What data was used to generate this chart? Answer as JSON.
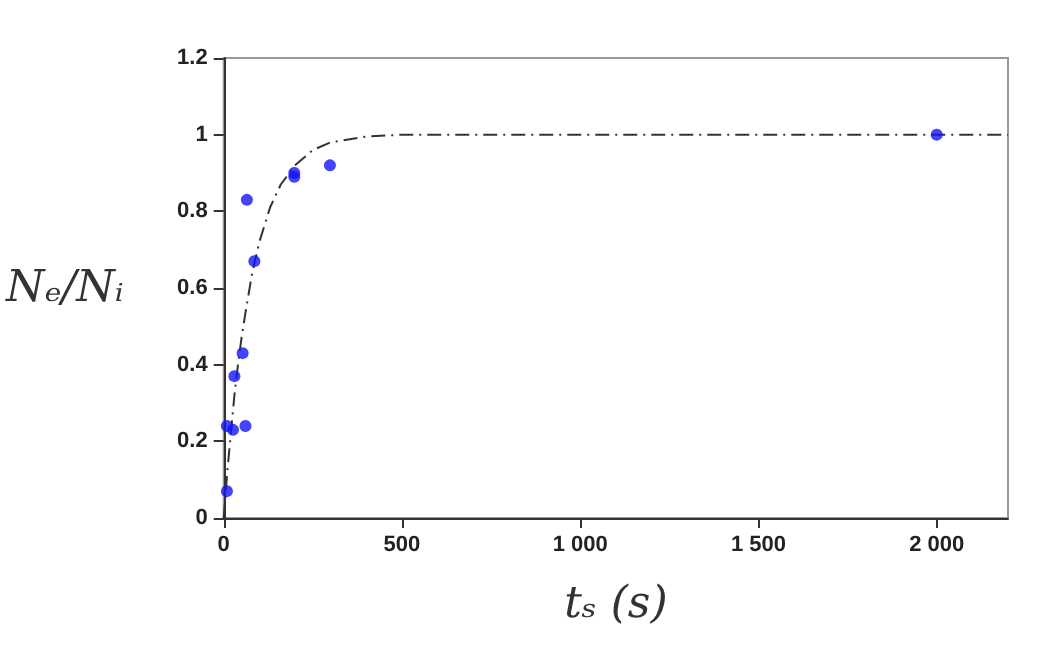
{
  "chart_data": {
    "type": "scatter",
    "xlabel": "tₛ (s)",
    "ylabel": "Nₑ/Nᵢ",
    "xlim": [
      0,
      2200
    ],
    "xticks": [
      0,
      500,
      {
        "value": 1000,
        "label": "1 000"
      },
      {
        "value": 1500,
        "label": "1 500"
      },
      {
        "value": 2000,
        "label": "2 000"
      }
    ],
    "ylim": [
      0,
      1.2
    ],
    "yticks": [
      0,
      0.2,
      0.4,
      0.6,
      0.8,
      1,
      1.2
    ],
    "grid": false,
    "marker": "circle",
    "series": [
      {
        "type": "line",
        "color": "#333333",
        "line_style": "dashed",
        "marker": "none",
        "x": [
          0,
          10,
          20,
          30,
          40,
          50,
          60,
          80,
          100,
          130,
          160,
          200,
          250,
          300,
          400,
          500,
          2200
        ],
        "values": [
          0,
          0.12,
          0.22,
          0.32,
          0.4,
          0.47,
          0.53,
          0.64,
          0.72,
          0.81,
          0.87,
          0.92,
          0.96,
          0.98,
          0.995,
          1,
          1
        ]
      },
      {
        "type": "scatter",
        "color": "#1414f5",
        "x": [
          9,
          9,
          26,
          30,
          53,
          61,
          65,
          86,
          198,
          198,
          298,
          2000
        ],
        "values": [
          0.07,
          0.24,
          0.23,
          0.37,
          0.43,
          0.24,
          0.83,
          0.67,
          0.9,
          0.89,
          0.92,
          1
        ]
      }
    ]
  }
}
